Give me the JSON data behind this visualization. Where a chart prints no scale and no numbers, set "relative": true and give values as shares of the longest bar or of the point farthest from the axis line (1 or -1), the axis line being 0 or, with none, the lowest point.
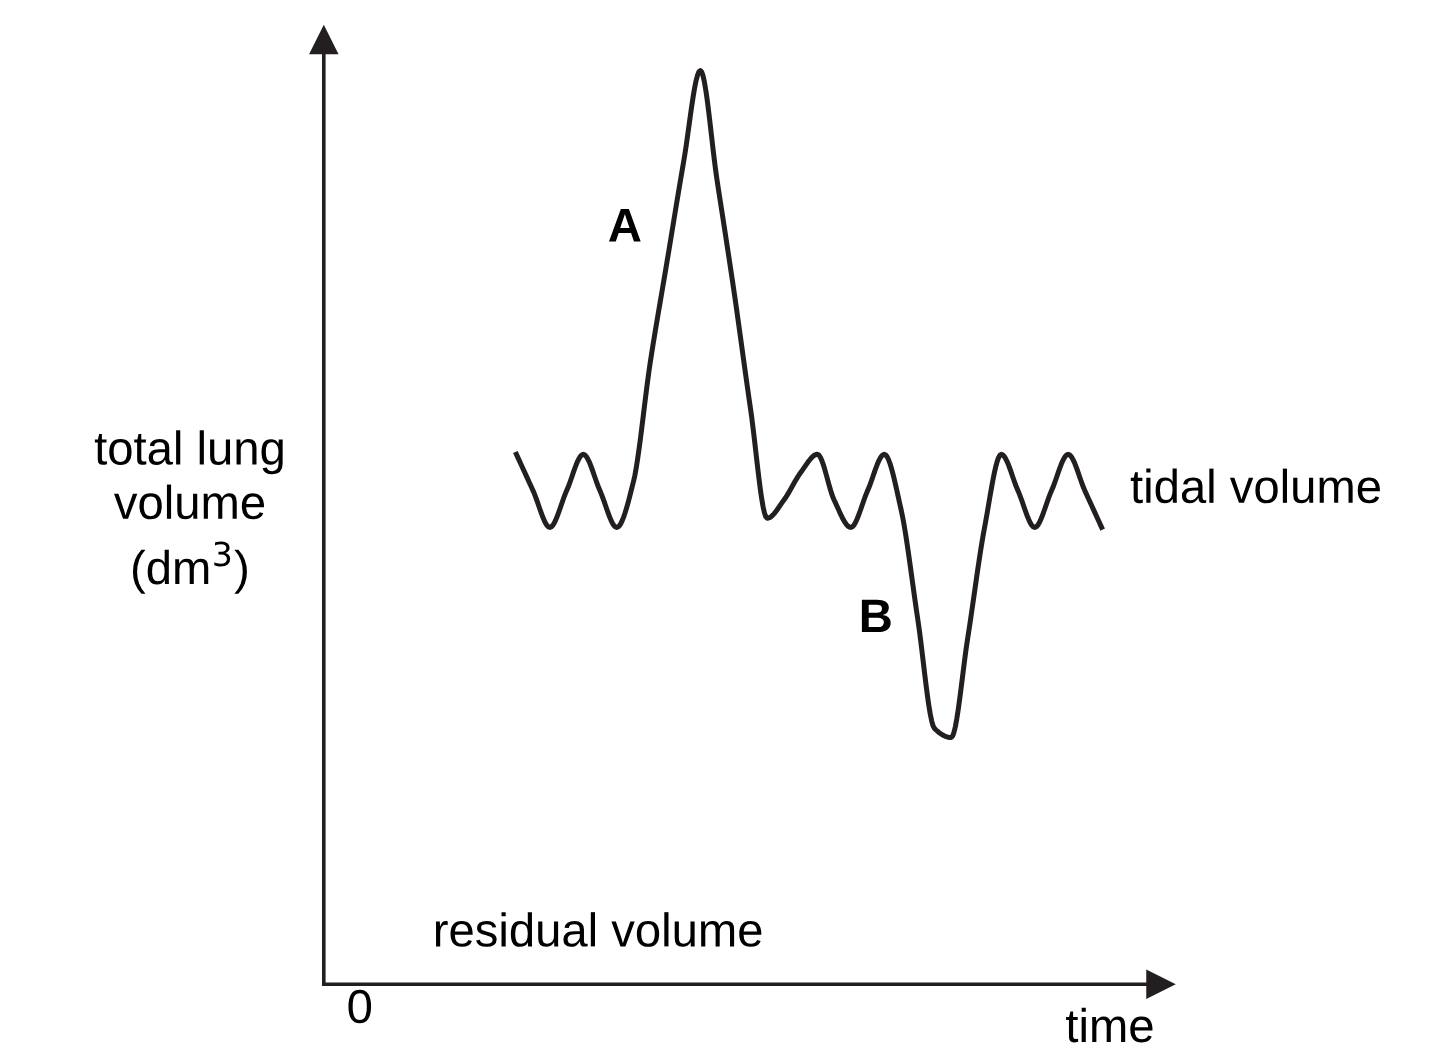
{
  "chart_data": {
    "type": "line",
    "relative": true,
    "xlabel": "time",
    "ylabel": "total lung\nvolume\n(dm$^{3}$)",
    "annotations": [
      "A",
      "B",
      "tidal volume",
      "residual volume",
      "0"
    ],
    "categories": [
      null,
      null,
      null,
      null,
      null,
      null,
      null,
      null,
      null,
      null,
      null,
      null,
      null,
      null,
      null,
      null,
      null,
      null,
      null,
      null,
      null,
      null,
      null,
      null,
      null,
      null,
      null,
      null,
      null,
      null,
      null,
      null,
      null,
      null,
      null,
      null
    ],
    "series": [
      {
        "color": "#231f20",
        "values": [
          0.58,
          0.54,
          0.5,
          0.54,
          0.58,
          0.54,
          0.5,
          0.55,
          0.68,
          0.79,
          0.9,
          1.0,
          0.88,
          0.76,
          0.63,
          0.51,
          0.53,
          0.56,
          0.58,
          0.53,
          0.5,
          0.54,
          0.58,
          0.52,
          0.4,
          0.28,
          0.27,
          0.38,
          0.5,
          0.58,
          0.54,
          0.5,
          0.54,
          0.58,
          0.54,
          0.5
        ]
      }
    ],
    "legend": false,
    "marker": "none",
    "line_style": "solid",
    "tick_labels": false
  }
}
